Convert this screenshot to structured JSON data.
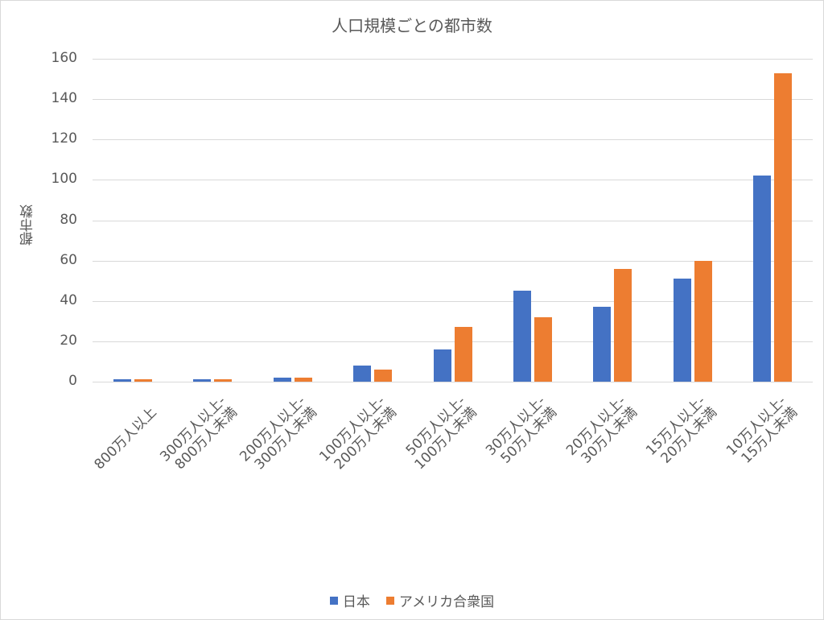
{
  "chart_data": {
    "type": "bar",
    "title": "人口規模ごとの都市数",
    "xlabel": "",
    "ylabel": "都市数",
    "ylim": [
      0,
      160
    ],
    "yticks": [
      0,
      20,
      40,
      60,
      80,
      100,
      120,
      140,
      160
    ],
    "grid": true,
    "legend_position": "bottom",
    "categories": [
      "800万人以上",
      "300万人以上-800万人未満",
      "200万人以上-300万人未満",
      "100万人以上-200万人未満",
      "50万人以上-100万人未満",
      "30万人以上-50万人未満",
      "20万人以上-30万人未満",
      "15万人以上-20万人未満",
      "10万人以上-15万人未満"
    ],
    "category_lines": [
      [
        "",
        "800万人以上"
      ],
      [
        "300万人以上-",
        "800万人未満"
      ],
      [
        "200万人以上-",
        "300万人未満"
      ],
      [
        "100万人以上-",
        "200万人未満"
      ],
      [
        "50万人以上-",
        "100万人未満"
      ],
      [
        "30万人以上-",
        "50万人未満"
      ],
      [
        "20万人以上-",
        "30万人未満"
      ],
      [
        "15万人以上-",
        "20万人未満"
      ],
      [
        "10万人以上-",
        "15万人未満"
      ]
    ],
    "series": [
      {
        "name": "日本",
        "color": "#4472c4",
        "values": [
          1,
          1,
          2,
          8,
          16,
          45,
          37,
          51,
          102
        ]
      },
      {
        "name": "アメリカ合衆国",
        "color": "#ed7d31",
        "values": [
          1,
          1,
          2,
          6,
          27,
          32,
          56,
          60,
          153
        ]
      }
    ]
  }
}
